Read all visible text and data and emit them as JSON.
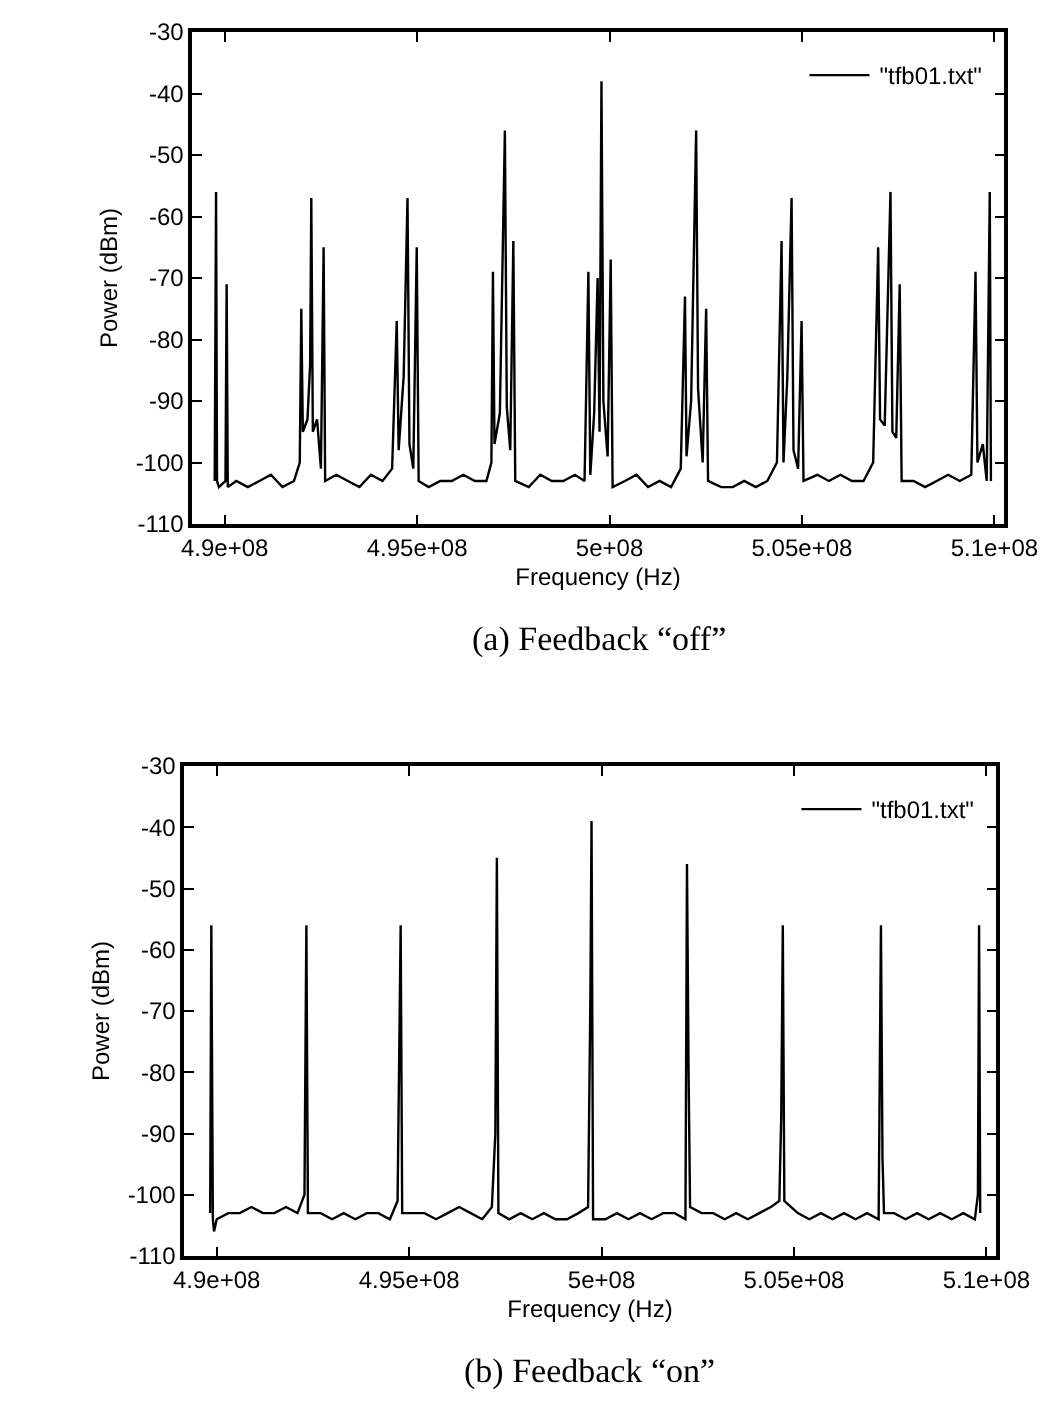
{
  "chart_data": [
    {
      "type": "line",
      "xlabel": "Frequency (Hz)",
      "ylabel": "Power (dBm)",
      "annotations": [
        "(a) Feedback “off”"
      ],
      "legend": "top right",
      "marker": "none",
      "line_style": "solid",
      "xlim": [
        489150000.0,
        510250000.0
      ],
      "xticks": [
        {
          "value": 490000000.0,
          "label": "4.9e+08"
        },
        {
          "value": 495000000.0,
          "label": "4.95e+08"
        },
        {
          "value": 500000000.0,
          "label": "5e+08"
        },
        {
          "value": 505000000.0,
          "label": "5.05e+08"
        },
        {
          "value": 510000000.0,
          "label": "5.1e+08"
        }
      ],
      "ylim": [
        -110,
        -30
      ],
      "yticks": [
        -30,
        -40,
        -50,
        -60,
        -70,
        -80,
        -90,
        -100,
        -110
      ],
      "series": [
        {
          "name": "\"tfb01.txt\"",
          "color": "#000000",
          "x": [
            489740000.0,
            489775000.0,
            489800000.0,
            489850000.0,
            490020000.0,
            490050000.0,
            490080000.0,
            490300000.0,
            490600000.0,
            490900000.0,
            491200000.0,
            491500000.0,
            491800000.0,
            491950000.0,
            491990000.0,
            492030000.0,
            492150000.0,
            492220000.0,
            492250000.0,
            492290000.0,
            492400000.0,
            492500000.0,
            492570000.0,
            492610000.0,
            492900000.0,
            493200000.0,
            493500000.0,
            493800000.0,
            494100000.0,
            494350000.0,
            494470000.0,
            494520000.0,
            494650000.0,
            494750000.0,
            494800000.0,
            494900000.0,
            494990000.0,
            495040000.0,
            495300000.0,
            495600000.0,
            495900000.0,
            496200000.0,
            496500000.0,
            496800000.0,
            496930000.0,
            496970000.0,
            497010000.0,
            497150000.0,
            497280000.0,
            497330000.0,
            497420000.0,
            497500000.0,
            497550000.0,
            497900000.0,
            498200000.0,
            498500000.0,
            498800000.0,
            499100000.0,
            499350000.0,
            499450000.0,
            499500000.0,
            499600000.0,
            499690000.0,
            499740000.0,
            499790000.0,
            499840000.0,
            499950000.0,
            500030000.0,
            500080000.0,
            500400000.0,
            500700000.0,
            501000000.0,
            501300000.0,
            501600000.0,
            501850000.0,
            501960000.0,
            502000000.0,
            502120000.0,
            502250000.0,
            502300000.0,
            502420000.0,
            502510000.0,
            502560000.0,
            502900000.0,
            503200000.0,
            503500000.0,
            503800000.0,
            504100000.0,
            504350000.0,
            504470000.0,
            504520000.0,
            504620000.0,
            504730000.0,
            504780000.0,
            504900000.0,
            504990000.0,
            505040000.0,
            505400000.0,
            505700000.0,
            506000000.0,
            506300000.0,
            506600000.0,
            506850000.0,
            506980000.0,
            507030000.0,
            507150000.0,
            507300000.0,
            507350000.0,
            507450000.0,
            507540000.0,
            507590000.0,
            507900000.0,
            508200000.0,
            508500000.0,
            508800000.0,
            509100000.0,
            509400000.0,
            509510000.0,
            509560000.0,
            509700000.0,
            509800000.0,
            509880000.0,
            509910000.0
          ],
          "values": [
            -103,
            -56,
            -103,
            -104,
            -103,
            -71,
            -104,
            -103,
            -104,
            -103,
            -102,
            -104,
            -103,
            -100,
            -75,
            -95,
            -93,
            -84,
            -57,
            -95,
            -93,
            -101,
            -65,
            -103,
            -102,
            -103,
            -104,
            -102,
            -103,
            -101,
            -77,
            -98,
            -86,
            -57,
            -97,
            -101,
            -65,
            -103,
            -104,
            -103,
            -103,
            -102,
            -103,
            -103,
            -100,
            -69,
            -97,
            -92,
            -46,
            -91,
            -98,
            -64,
            -103,
            -104,
            -102,
            -103,
            -103,
            -102,
            -103,
            -69,
            -102,
            -92,
            -70,
            -95,
            -38,
            -90,
            -99,
            -67,
            -104,
            -103,
            -102,
            -104,
            -103,
            -104,
            -101,
            -73,
            -99,
            -90,
            -46,
            -88,
            -100,
            -75,
            -103,
            -104,
            -104,
            -103,
            -104,
            -103,
            -100,
            -64,
            -100,
            -86,
            -57,
            -98,
            -101,
            -77,
            -103,
            -102,
            -103,
            -102,
            -103,
            -103,
            -100,
            -65,
            -93,
            -94,
            -56,
            -95,
            -96,
            -71,
            -103,
            -103,
            -104,
            -103,
            -102,
            -103,
            -102,
            -69,
            -100,
            -97,
            -103,
            -56,
            -103
          ]
        }
      ]
    },
    {
      "type": "line",
      "xlabel": "Frequency (Hz)",
      "ylabel": "Power (dBm)",
      "annotations": [
        "(b) Feedback “on”"
      ],
      "legend": "top right",
      "marker": "none",
      "line_style": "solid",
      "xlim": [
        489150000.0,
        510250000.0
      ],
      "xticks": [
        {
          "value": 490000000.0,
          "label": "4.9e+08"
        },
        {
          "value": 495000000.0,
          "label": "4.95e+08"
        },
        {
          "value": 500000000.0,
          "label": "5e+08"
        },
        {
          "value": 505000000.0,
          "label": "5.05e+08"
        },
        {
          "value": 510000000.0,
          "label": "5.1e+08"
        }
      ],
      "ylim": [
        -110,
        -30
      ],
      "yticks": [
        -30,
        -40,
        -50,
        -60,
        -70,
        -80,
        -90,
        -100,
        -110
      ],
      "series": [
        {
          "name": "\"tfb01.txt\"",
          "color": "#000000",
          "x": [
            489830000.0,
            489860000.0,
            489900000.0,
            489930000.0,
            490000000.0,
            490300000.0,
            490600000.0,
            490900000.0,
            491200000.0,
            491500000.0,
            491800000.0,
            492100000.0,
            492280000.0,
            492330000.0,
            492370000.0,
            492700000.0,
            493000000.0,
            493300000.0,
            493600000.0,
            493900000.0,
            494200000.0,
            494500000.0,
            494700000.0,
            494780000.0,
            494820000.0,
            495100000.0,
            495400000.0,
            495700000.0,
            496000000.0,
            496300000.0,
            496600000.0,
            496900000.0,
            497150000.0,
            497240000.0,
            497280000.0,
            497320000.0,
            497600000.0,
            497900000.0,
            498200000.0,
            498500000.0,
            498800000.0,
            499100000.0,
            499400000.0,
            499650000.0,
            499710000.0,
            499740000.0,
            499780000.0,
            500100000.0,
            500400000.0,
            500700000.0,
            501000000.0,
            501300000.0,
            501600000.0,
            501900000.0,
            502180000.0,
            502220000.0,
            502260000.0,
            502300000.0,
            502600000.0,
            502900000.0,
            503200000.0,
            503500000.0,
            503800000.0,
            504100000.0,
            504400000.0,
            504620000.0,
            504670000.0,
            504710000.0,
            504750000.0,
            505100000.0,
            505400000.0,
            505700000.0,
            506000000.0,
            506300000.0,
            506600000.0,
            506900000.0,
            507200000.0,
            507260000.0,
            507300000.0,
            507340000.0,
            507600000.0,
            507900000.0,
            508200000.0,
            508500000.0,
            508800000.0,
            509100000.0,
            509400000.0,
            509700000.0,
            509780000.0,
            509810000.0,
            509840000.0
          ],
          "values": [
            -103,
            -56,
            -104,
            -106,
            -104,
            -103,
            -103,
            -102,
            -103,
            -103,
            -102,
            -103,
            -100,
            -56,
            -103,
            -103,
            -104,
            -103,
            -104,
            -103,
            -103,
            -104,
            -101,
            -56,
            -103,
            -103,
            -103,
            -104,
            -103,
            -102,
            -103,
            -104,
            -102,
            -90,
            -45,
            -103,
            -104,
            -103,
            -104,
            -103,
            -104,
            -104,
            -103,
            -102,
            -68,
            -39,
            -104,
            -104,
            -103,
            -104,
            -103,
            -104,
            -103,
            -103,
            -104,
            -46,
            -79,
            -102,
            -103,
            -103,
            -104,
            -103,
            -104,
            -103,
            -102,
            -101,
            -87,
            -56,
            -101,
            -103,
            -104,
            -103,
            -104,
            -103,
            -104,
            -103,
            -104,
            -56,
            -94,
            -103,
            -103,
            -104,
            -103,
            -104,
            -103,
            -104,
            -103,
            -104,
            -100,
            -56,
            -103
          ]
        }
      ]
    }
  ]
}
